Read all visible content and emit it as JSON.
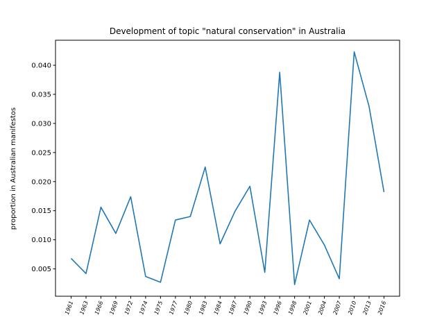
{
  "chart_data": {
    "type": "line",
    "title": "Development of topic \"natural conservation\" in Australia",
    "xlabel": "",
    "ylabel": "proportion in Australian manifestos",
    "categories": [
      "1961",
      "1963",
      "1966",
      "1969",
      "1972",
      "1974",
      "1975",
      "1977",
      "1980",
      "1983",
      "1984",
      "1987",
      "1990",
      "1993",
      "1996",
      "1998",
      "2001",
      "2004",
      "2007",
      "2010",
      "2013",
      "2016"
    ],
    "series": [
      {
        "values": [
          0.0068,
          0.0042,
          0.0156,
          0.0111,
          0.0174,
          0.0037,
          0.0027,
          0.0134,
          0.014,
          0.0225,
          0.0093,
          0.0149,
          0.0192,
          0.0044,
          0.0388,
          0.0023,
          0.0134,
          0.0091,
          0.0033,
          0.0423,
          0.0329,
          0.0182
        ],
        "color": "#1f77b4"
      }
    ],
    "yticks": [
      0.005,
      0.01,
      0.015,
      0.02,
      0.025,
      0.03,
      0.035,
      0.04
    ],
    "ytick_labels": [
      "0.005",
      "0.010",
      "0.015",
      "0.020",
      "0.025",
      "0.030",
      "0.035",
      "0.040"
    ],
    "ylim": [
      0.0003,
      0.0443
    ],
    "grid": false,
    "legend": "none"
  }
}
